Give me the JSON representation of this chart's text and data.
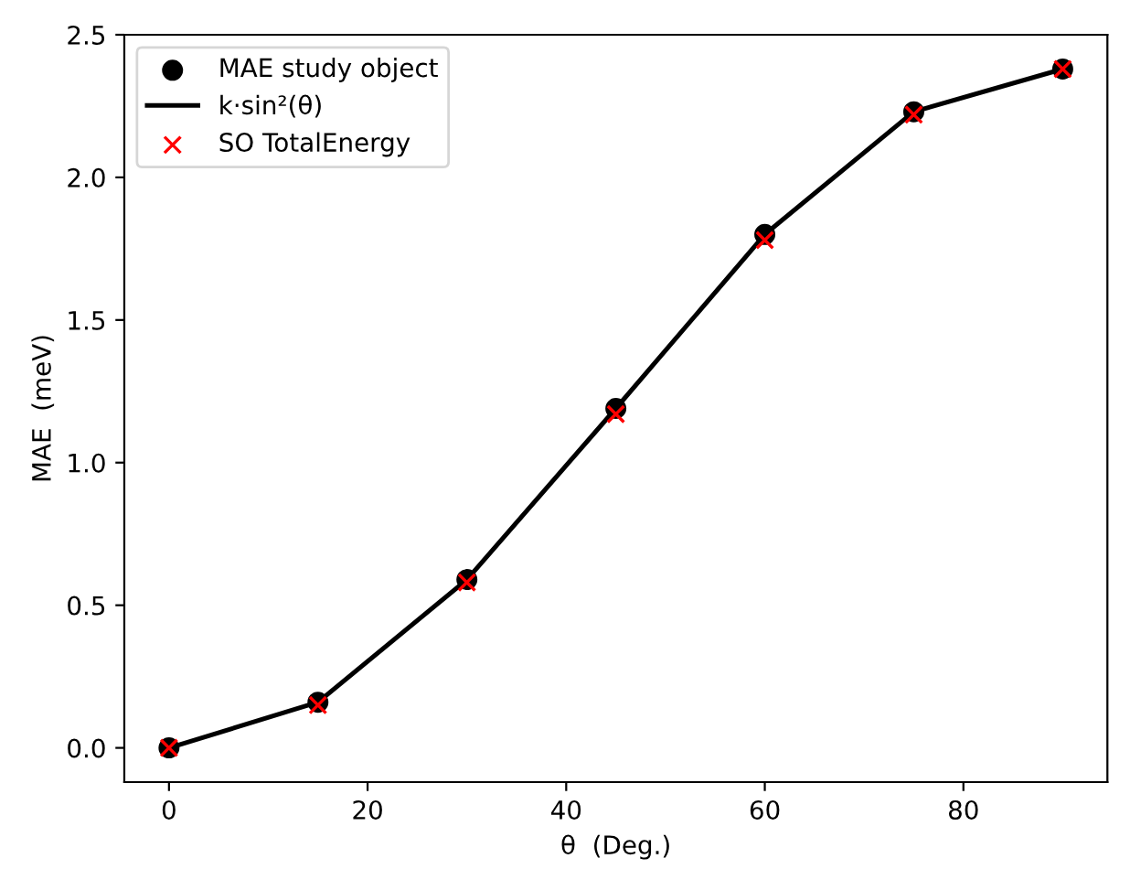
{
  "chart_data": {
    "type": "scatter",
    "xlabel": "θ  (Deg.)",
    "ylabel": "MAE  (meV)",
    "x": [
      0,
      15,
      30,
      45,
      60,
      75,
      90
    ],
    "series": [
      {
        "name": "MAE study object",
        "marker": "circle",
        "color": "#000000",
        "values": [
          0,
          0.16,
          0.59,
          1.19,
          1.8,
          2.23,
          2.38
        ]
      },
      {
        "name": "k·sin²(θ)",
        "type": "line",
        "marker": "none",
        "color": "#000000",
        "values": [
          0,
          0.16,
          0.59,
          1.19,
          1.8,
          2.23,
          2.38
        ]
      },
      {
        "name": "SO TotalEnergy",
        "marker": "cross",
        "color": "#ff0000",
        "values": [
          0,
          0.15,
          0.58,
          1.17,
          1.78,
          2.22,
          2.38
        ]
      }
    ],
    "xlim": [
      -4.5,
      94.5
    ],
    "ylim": [
      -0.12,
      2.5
    ],
    "xticks": [
      0,
      20,
      40,
      60,
      80
    ],
    "yticks": [
      {
        "value": 0,
        "label": "0.0"
      },
      0.5,
      {
        "value": 1,
        "label": "1.0"
      },
      1.5,
      {
        "value": 2,
        "label": "2.0"
      },
      2.5
    ],
    "grid": false,
    "legend": "top left"
  }
}
